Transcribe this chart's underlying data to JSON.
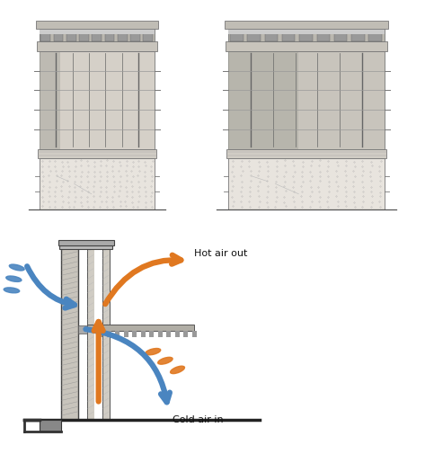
{
  "bg_color": "#ffffff",
  "orange": "#E07820",
  "blue": "#4A85C0",
  "dark_gray": "#444444",
  "mid_gray": "#888888",
  "light_gray": "#cccccc",
  "wall_gray": "#b0b0b0",
  "hatch_gray": "#999999",
  "label_hot": "Hot air out",
  "label_cold": "Cold air in",
  "label_fontsize": 8,
  "tower_sketch_color": "#888888"
}
